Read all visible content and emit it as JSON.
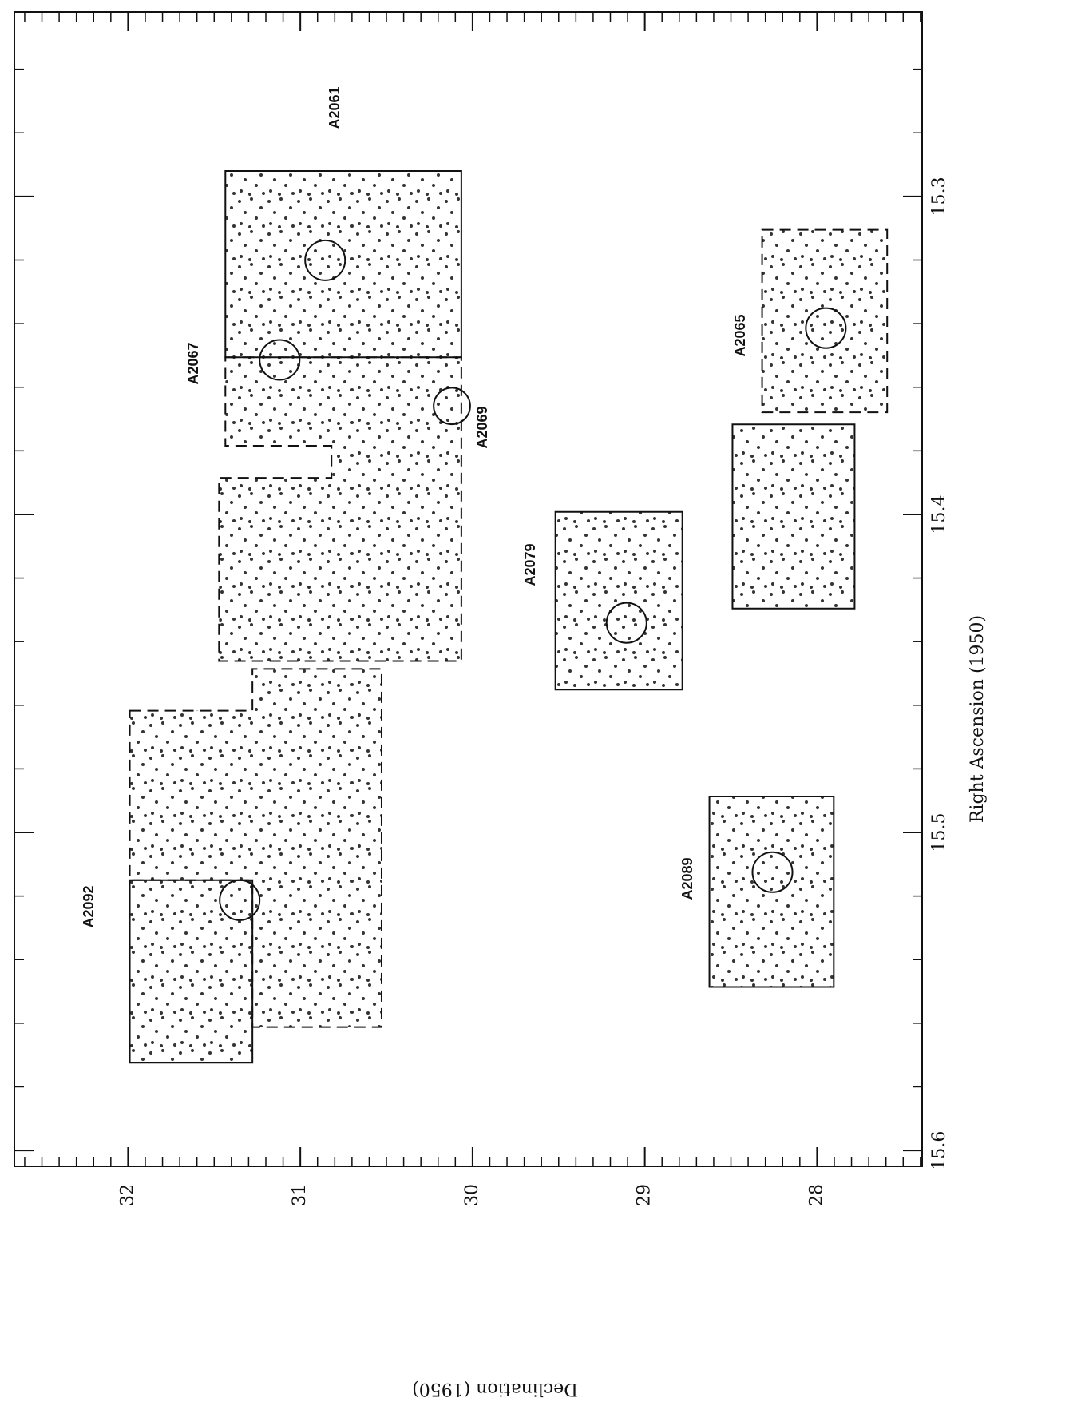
{
  "chart_data": {
    "type": "sky_map",
    "xlabel": "Declination (1950)",
    "ylabel": "Right Ascension (1950)",
    "xlim": [
      32.66,
      27.39
    ],
    "ylim": [
      15.242,
      15.605
    ],
    "xticks": [
      32,
      31,
      30,
      29,
      28
    ],
    "yticks": [
      15.3,
      15.4,
      15.5,
      15.6
    ],
    "xminorticks": [
      32.6,
      32.5,
      32.4,
      32.3,
      32.2,
      32.1,
      31.9,
      31.8,
      31.7,
      31.6,
      31.5,
      31.4,
      31.3,
      31.2,
      31.1,
      30.9,
      30.8,
      30.7,
      30.6,
      30.5,
      30.4,
      30.3,
      30.2,
      30.1,
      29.9,
      29.8,
      29.7,
      29.6,
      29.5,
      29.4,
      29.3,
      29.2,
      29.1,
      28.9,
      28.8,
      28.7,
      28.6,
      28.5,
      28.4,
      28.3,
      28.2,
      28.1,
      27.9,
      27.8,
      27.7,
      27.6,
      27.5,
      27.4
    ],
    "yminorticks": [
      15.26,
      15.28,
      15.32,
      15.34,
      15.36,
      15.38,
      15.42,
      15.44,
      15.46,
      15.48,
      15.52,
      15.54,
      15.56,
      15.58
    ],
    "regions": [
      {
        "style": "solid",
        "vertices": [
          [
            31.435,
            15.292
          ],
          [
            30.065,
            15.292
          ],
          [
            30.065,
            15.3506
          ],
          [
            31.435,
            15.3506
          ]
        ]
      },
      {
        "style": "dashed",
        "vertices": [
          [
            31.435,
            15.3506
          ],
          [
            30.065,
            15.3506
          ],
          [
            30.065,
            15.4461
          ],
          [
            31.472,
            15.4461
          ],
          [
            31.472,
            15.3885
          ],
          [
            30.819,
            15.3885
          ],
          [
            30.819,
            15.3784
          ],
          [
            31.435,
            15.3784
          ]
        ]
      },
      {
        "style": "dashed",
        "vertices": [
          [
            31.99,
            15.4617
          ],
          [
            31.278,
            15.4617
          ],
          [
            31.278,
            15.4486
          ],
          [
            30.528,
            15.4486
          ],
          [
            30.528,
            15.5612
          ],
          [
            31.278,
            15.5612
          ],
          [
            31.278,
            15.515
          ],
          [
            31.99,
            15.515
          ]
        ]
      },
      {
        "style": "solid",
        "vertices": [
          [
            31.99,
            15.515
          ],
          [
            31.278,
            15.515
          ],
          [
            31.278,
            15.5724
          ],
          [
            31.99,
            15.5724
          ]
        ]
      },
      {
        "style": "solid",
        "vertices": [
          [
            29.519,
            15.3992
          ],
          [
            28.782,
            15.3992
          ],
          [
            28.782,
            15.4551
          ],
          [
            29.519,
            15.4551
          ]
        ]
      },
      {
        "style": "dashed",
        "vertices": [
          [
            28.319,
            15.3105
          ],
          [
            27.593,
            15.3105
          ],
          [
            27.593,
            15.3679
          ],
          [
            28.319,
            15.3679
          ]
        ]
      },
      {
        "style": "solid",
        "vertices": [
          [
            28.491,
            15.3717
          ],
          [
            27.782,
            15.3717
          ],
          [
            27.782,
            15.4296
          ],
          [
            28.491,
            15.4296
          ]
        ]
      },
      {
        "style": "solid",
        "vertices": [
          [
            28.625,
            15.4887
          ],
          [
            27.903,
            15.4887
          ],
          [
            27.903,
            15.5486
          ],
          [
            28.625,
            15.5486
          ]
        ]
      }
    ],
    "circles": [
      {
        "dec": 30.856,
        "ra": 15.3201,
        "radius": 0.116
      },
      {
        "dec": 31.12,
        "ra": 15.3514,
        "radius": 0.116
      },
      {
        "dec": 30.12,
        "ra": 15.3659,
        "radius": 0.106
      },
      {
        "dec": 29.106,
        "ra": 15.4341,
        "radius": 0.116
      },
      {
        "dec": 27.949,
        "ra": 15.3414,
        "radius": 0.116
      },
      {
        "dec": 28.259,
        "ra": 15.5125,
        "radius": 0.116
      },
      {
        "dec": 31.352,
        "ra": 15.5213,
        "radius": 0.116
      }
    ],
    "annotations": [
      "A2061",
      "A2067",
      "A2069",
      "A2079",
      "A2065",
      "A2089",
      "A2092"
    ]
  }
}
